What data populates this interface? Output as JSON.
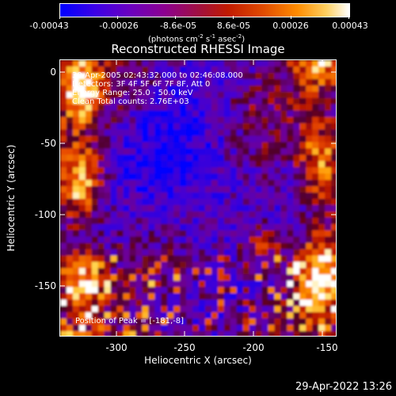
{
  "colorbar": {
    "ticks": [
      "-0.00043",
      "-0.00026",
      "-8.6e-05",
      "8.6e-05",
      "0.00026",
      "0.00043"
    ],
    "units_prefix": "(photons cm",
    "units_sup1": "-2",
    "units_mid": " s",
    "units_sup2": "-1",
    "units_mid2": " asec",
    "units_sup3": "-2",
    "units_suffix": ")",
    "stops": [
      "#0000ff",
      "#4a00d8",
      "#7a00a8",
      "#a01060",
      "#c02000",
      "#e04000",
      "#ff8000",
      "#ffc040",
      "#ffffff"
    ]
  },
  "title": "Reconstructed RHESSI Image",
  "overlay": {
    "line1": "30-Apr-2005 02:43:32.000 to 02:46:08.000",
    "line2": "Detectors: 3F 4F 5F 6F 7F 8F, Att 0",
    "line3": "Energy Range: 25.0 - 50.0 keV",
    "line4": "Clean     Total counts: 2.76E+03",
    "peak": "Position of Peak = [-181,-8]"
  },
  "axes": {
    "xlabel": "Heliocentric X (arcsec)",
    "ylabel": "Heliocentric Y (arcsec)",
    "xticks": [
      "-300",
      "-250",
      "-200",
      "-150"
    ],
    "yticks": [
      "0",
      "-50",
      "-100",
      "-150"
    ]
  },
  "footer": {
    "timestamp": "29-Apr-2022 13:26"
  }
}
